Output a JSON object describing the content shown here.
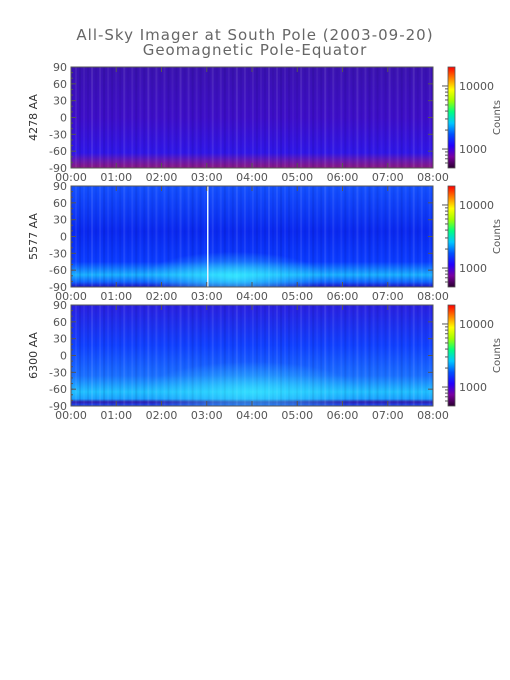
{
  "title": "All-Sky Imager at South Pole (2003-09-20)",
  "subtitle": "Geomagnetic Pole-Equator",
  "colorbar_label": "Counts",
  "colormap": [
    "#2b0030",
    "#7a00a0",
    "#2200ff",
    "#0050ff",
    "#00c8ff",
    "#00ff80",
    "#a0ff00",
    "#ffff00",
    "#ff8000",
    "#ff0000"
  ],
  "chart_data": [
    {
      "type": "heatmap",
      "ylabel": "4278 AA",
      "x_ticks": [
        "00:00",
        "01:00",
        "02:00",
        "03:00",
        "04:00",
        "05:00",
        "06:00",
        "07:00",
        "08:00"
      ],
      "y_ticks": [
        "90",
        "60",
        "30",
        "0",
        "-30",
        "-60",
        "-90"
      ],
      "ylim": [
        -90,
        90
      ],
      "colorbar_ticks": [
        "10000",
        "1000"
      ],
      "colorbar_label": "Counts"
    },
    {
      "type": "heatmap",
      "ylabel": "5577 AA",
      "x_ticks": [
        "00:00",
        "01:00",
        "02:00",
        "03:00",
        "04:00",
        "05:00",
        "06:00",
        "07:00",
        "08:00"
      ],
      "y_ticks": [
        "90",
        "60",
        "30",
        "0",
        "-30",
        "-60",
        "-90"
      ],
      "ylim": [
        -90,
        90
      ],
      "colorbar_ticks": [
        "10000",
        "1000"
      ],
      "colorbar_label": "Counts"
    },
    {
      "type": "heatmap",
      "ylabel": "6300 AA",
      "x_ticks": [
        "00:00",
        "01:00",
        "02:00",
        "03:00",
        "04:00",
        "05:00",
        "06:00",
        "07:00",
        "08:00"
      ],
      "y_ticks": [
        "90",
        "60",
        "30",
        "0",
        "-30",
        "-60",
        "-90"
      ],
      "ylim": [
        -90,
        90
      ],
      "colorbar_ticks": [
        "10000",
        "1000"
      ],
      "colorbar_label": "Counts"
    }
  ]
}
